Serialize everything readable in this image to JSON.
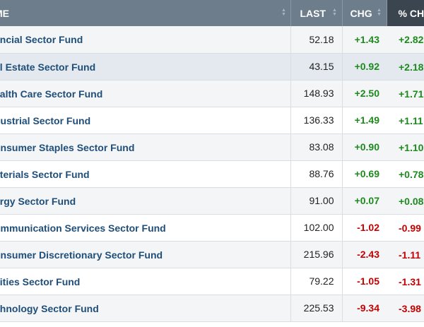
{
  "header": {
    "name_label": "ME",
    "last_label": "LAST",
    "chg_label": "CHG",
    "pct_label": "% CHG"
  },
  "colors": {
    "positive": "#1e8a1e",
    "negative": "#c40000",
    "header": "#6d7d8b",
    "header_active": "#3b4550"
  },
  "rows": [
    {
      "name": "ancial Sector Fund",
      "last": "52.18",
      "chg": "+1.43",
      "pct": "+2.82",
      "dir": "up"
    },
    {
      "name": "al Estate Sector Fund",
      "last": "43.15",
      "chg": "+0.92",
      "pct": "+2.18",
      "dir": "up"
    },
    {
      "name": "ealth Care Sector Fund",
      "last": "148.93",
      "chg": "+2.50",
      "pct": "+1.71",
      "dir": "up"
    },
    {
      "name": "dustrial Sector Fund",
      "last": "136.33",
      "chg": "+1.49",
      "pct": "+1.11",
      "dir": "up"
    },
    {
      "name": "onsumer Staples Sector Fund",
      "last": "83.08",
      "chg": "+0.90",
      "pct": "+1.10",
      "dir": "up"
    },
    {
      "name": "aterials Sector Fund",
      "last": "88.76",
      "chg": "+0.69",
      "pct": "+0.78",
      "dir": "up"
    },
    {
      "name": "ergy Sector Fund",
      "last": "91.00",
      "chg": "+0.07",
      "pct": "+0.08",
      "dir": "up"
    },
    {
      "name": "ommunication Services Sector Fund",
      "last": "102.00",
      "chg": "-1.02",
      "pct": "-0.99",
      "dir": "down"
    },
    {
      "name": "onsumer Discretionary Sector Fund",
      "last": "215.96",
      "chg": "-2.43",
      "pct": "-1.11",
      "dir": "down"
    },
    {
      "name": "ilities Sector Fund",
      "last": "79.22",
      "chg": "-1.05",
      "pct": "-1.31",
      "dir": "down"
    },
    {
      "name": "chnology Sector Fund",
      "last": "225.53",
      "chg": "-9.34",
      "pct": "-3.98",
      "dir": "down"
    }
  ]
}
